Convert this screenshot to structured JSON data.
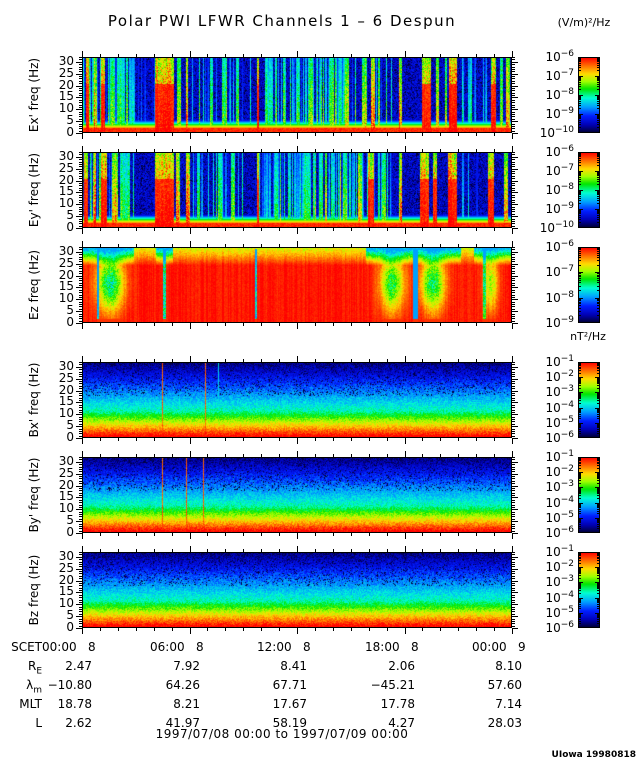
{
  "chart_data": {
    "type": "heatmap",
    "title": "Polar PWI LFWR Channels 1 – 6 Despun",
    "e_units": "(V/m)²/Hz",
    "b_units": "nT²/Hz",
    "time_axis": {
      "label": "SCET",
      "major_tick_interval_hours": 6,
      "minor_tick_interval_hours": 1,
      "major_ticks": [
        "00:00   8",
        "06:00   8",
        "12:00   8",
        "18:00   8",
        "00:00   9"
      ]
    },
    "freq_axis": {
      "min": 0,
      "max": 32,
      "major_ticks": [
        0,
        5,
        10,
        15,
        20,
        25,
        30
      ],
      "minor_step": 1
    },
    "panels": [
      {
        "id": "ex",
        "ylabel": "Ex' freq (Hz)",
        "pattern": "e-streaks",
        "seed": 101,
        "colorbar": {
          "base": "10",
          "exponents": [
            "−6",
            "−7",
            "−8",
            "−9",
            "−10"
          ]
        },
        "streaks": [
          [
            0.012,
            0.008,
            1
          ],
          [
            0.03,
            0.006,
            0.85
          ],
          [
            0.048,
            0.01,
            1
          ],
          [
            0.07,
            0.012,
            0.7
          ],
          [
            0.09,
            0.02,
            0.6
          ],
          [
            0.115,
            0.015,
            0.5
          ],
          [
            0.19,
            0.045,
            1
          ],
          [
            0.225,
            0.01,
            0.8
          ],
          [
            0.243,
            0.006,
            0.9
          ],
          [
            0.3,
            0.008,
            0.6
          ],
          [
            0.33,
            0.01,
            0.65
          ],
          [
            0.36,
            0.006,
            0.7
          ],
          [
            0.408,
            0.004,
            0.95
          ],
          [
            0.44,
            0.008,
            0.55
          ],
          [
            0.47,
            0.006,
            0.6
          ],
          [
            0.5,
            0.008,
            0.6
          ],
          [
            0.53,
            0.01,
            0.65
          ],
          [
            0.555,
            0.006,
            0.6
          ],
          [
            0.58,
            0.008,
            0.7
          ],
          [
            0.6,
            0.006,
            0.6
          ],
          [
            0.615,
            0.008,
            0.75
          ],
          [
            0.655,
            0.012,
            0.8
          ],
          [
            0.675,
            0.01,
            0.9
          ],
          [
            0.69,
            0.006,
            0.7
          ],
          [
            0.74,
            0.006,
            0.9
          ],
          [
            0.8,
            0.02,
            1
          ],
          [
            0.825,
            0.008,
            0.9
          ],
          [
            0.845,
            0.006,
            0.8
          ],
          [
            0.862,
            0.018,
            1
          ],
          [
            0.9,
            0.006,
            0.5
          ],
          [
            0.955,
            0.012,
            0.95
          ],
          [
            0.975,
            0.008,
            0.7
          ],
          [
            0.99,
            0.008,
            0.85
          ]
        ],
        "clutter": [
          [
            0.0,
            0.12,
            0.5,
            0.55
          ],
          [
            0.13,
            0.17,
            0.15,
            0.3
          ],
          [
            0.25,
            0.4,
            0.3,
            0.45
          ],
          [
            0.42,
            0.63,
            0.55,
            0.5
          ],
          [
            0.63,
            0.72,
            0.4,
            0.55
          ],
          [
            0.88,
            0.95,
            0.25,
            0.4
          ]
        ]
      },
      {
        "id": "ey",
        "ylabel": "Ey' freq (Hz)",
        "pattern": "e-streaks",
        "seed": 202,
        "colorbar": {
          "base": "10",
          "exponents": [
            "−6",
            "−7",
            "−8",
            "−9",
            "−10"
          ]
        },
        "streaks": [
          [
            0.008,
            0.01,
            1
          ],
          [
            0.028,
            0.008,
            0.9
          ],
          [
            0.05,
            0.012,
            1
          ],
          [
            0.075,
            0.015,
            0.85
          ],
          [
            0.1,
            0.02,
            0.6
          ],
          [
            0.19,
            0.045,
            1
          ],
          [
            0.222,
            0.008,
            0.85
          ],
          [
            0.245,
            0.01,
            0.9
          ],
          [
            0.27,
            0.006,
            0.6
          ],
          [
            0.32,
            0.01,
            0.6
          ],
          [
            0.35,
            0.008,
            0.65
          ],
          [
            0.408,
            0.004,
            0.95
          ],
          [
            0.45,
            0.008,
            0.6
          ],
          [
            0.48,
            0.006,
            0.55
          ],
          [
            0.52,
            0.008,
            0.6
          ],
          [
            0.555,
            0.008,
            0.65
          ],
          [
            0.585,
            0.006,
            0.6
          ],
          [
            0.61,
            0.01,
            0.7
          ],
          [
            0.645,
            0.01,
            0.75
          ],
          [
            0.67,
            0.014,
            0.95
          ],
          [
            0.7,
            0.006,
            0.7
          ],
          [
            0.74,
            0.006,
            0.9
          ],
          [
            0.795,
            0.02,
            1
          ],
          [
            0.82,
            0.01,
            0.95
          ],
          [
            0.86,
            0.022,
            1
          ],
          [
            0.95,
            0.014,
            0.95
          ],
          [
            0.985,
            0.01,
            0.9
          ]
        ],
        "clutter": [
          [
            0.0,
            0.12,
            0.5,
            0.6
          ],
          [
            0.25,
            0.38,
            0.3,
            0.45
          ],
          [
            0.4,
            0.62,
            0.6,
            0.55
          ],
          [
            0.62,
            0.72,
            0.45,
            0.5
          ],
          [
            0.88,
            0.95,
            0.2,
            0.4
          ]
        ]
      },
      {
        "id": "ez",
        "ylabel": "Ez freq (Hz)",
        "pattern": "e-saturated",
        "seed": 303,
        "colorbar": {
          "base": "10",
          "exponents": [
            "−6",
            "−7",
            "−8",
            "−9"
          ]
        },
        "top_patches": [
          [
            0.0,
            0.12
          ],
          [
            0.17,
            0.21
          ],
          [
            0.66,
            0.88
          ],
          [
            0.91,
            1.0
          ]
        ],
        "blobs": [
          {
            "x": 0.065,
            "w": 0.055,
            "s": 0.5
          },
          {
            "x": 0.72,
            "w": 0.05,
            "s": 0.42
          },
          {
            "x": 0.815,
            "w": 0.05,
            "s": 0.45
          },
          {
            "x": 0.95,
            "w": 0.03,
            "s": 0.3
          }
        ],
        "dips": [
          {
            "x": 0.036,
            "w": 0.006,
            "s": 0.55
          },
          {
            "x": 0.19,
            "w": 0.007,
            "s": 0.5
          },
          {
            "x": 0.403,
            "w": 0.004,
            "s": 0.6
          },
          {
            "x": 0.775,
            "w": 0.012,
            "s": 0.8
          },
          {
            "x": 0.935,
            "w": 0.005,
            "s": 0.35
          }
        ]
      },
      {
        "id": "bx",
        "ylabel": "Bx' freq (Hz)",
        "pattern": "b-gradient",
        "seed": 404,
        "colorbar": {
          "base": "10",
          "exponents": [
            "−1",
            "−2",
            "−3",
            "−4",
            "−5",
            "−6"
          ]
        },
        "lines": [
          {
            "x": 0.186,
            "color": "orange"
          },
          {
            "x": 0.286,
            "color": "orange"
          },
          {
            "x": 0.316,
            "color": "cyan"
          }
        ]
      },
      {
        "id": "by",
        "ylabel": "By' freq (Hz)",
        "pattern": "b-gradient",
        "seed": 505,
        "colorbar": {
          "base": "10",
          "exponents": [
            "−1",
            "−2",
            "−3",
            "−4",
            "−5",
            "−6"
          ]
        },
        "lines": [
          {
            "x": 0.186,
            "color": "orange"
          },
          {
            "x": 0.242,
            "color": "orange"
          },
          {
            "x": 0.281,
            "color": "orange"
          }
        ]
      },
      {
        "id": "bz",
        "ylabel": "Bz freq (Hz)",
        "pattern": "b-gradient",
        "seed": 606,
        "colorbar": {
          "base": "10",
          "exponents": [
            "−1",
            "−2",
            "−3",
            "−4",
            "−5",
            "−6"
          ]
        },
        "lines": []
      }
    ],
    "ephemeris": {
      "rows": [
        {
          "label": "R",
          "sub": "E",
          "values": [
            "2.47",
            "7.92",
            "8.41",
            "2.06",
            "8.10"
          ]
        },
        {
          "label": "λ",
          "sub": "m",
          "values": [
            "−10.80",
            "64.26",
            "67.71",
            "−45.21",
            "57.60"
          ]
        },
        {
          "label": "MLT",
          "sub": "",
          "values": [
            "18.78",
            "8.21",
            "17.67",
            "17.78",
            "7.14"
          ]
        },
        {
          "label": "L",
          "sub": "",
          "values": [
            "2.62",
            "41.97",
            "58.19",
            "4.27",
            "28.03"
          ]
        }
      ]
    },
    "footer": {
      "date_range": "1997/07/08 00:00 to 1997/07/09 00:00",
      "credit": "UIowa 19980818"
    }
  }
}
